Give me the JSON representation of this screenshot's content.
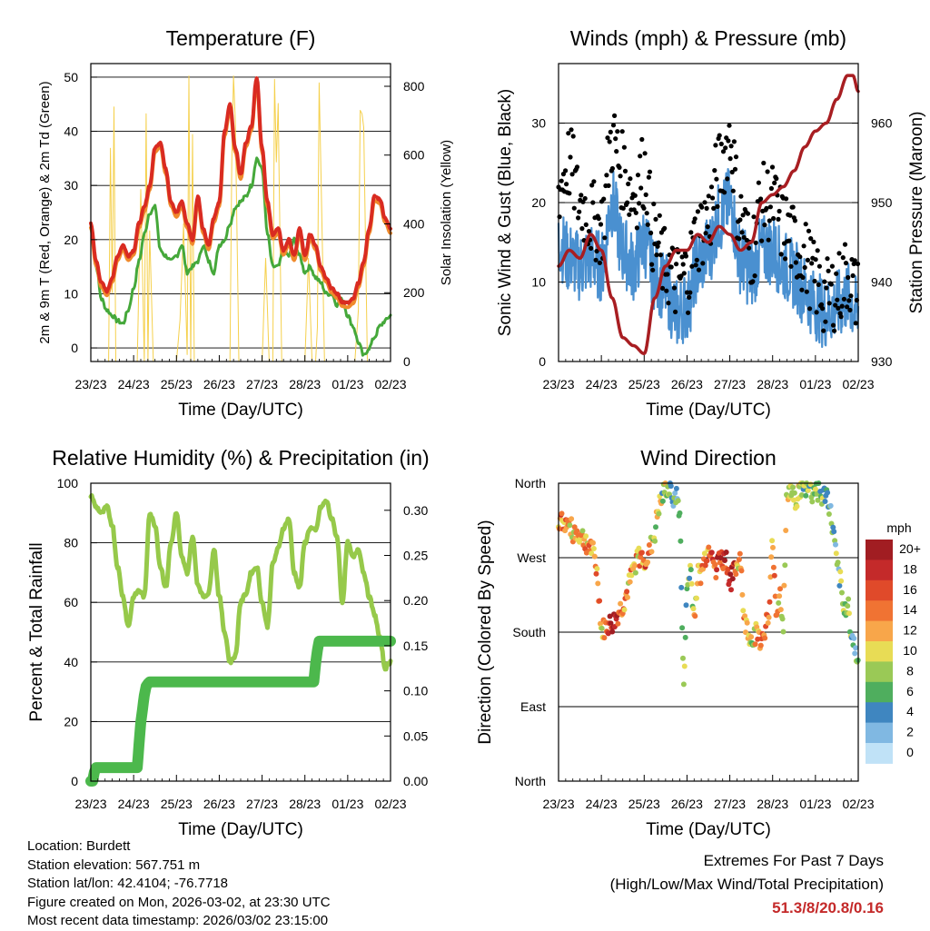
{
  "time_axis": {
    "tick_labels": [
      "23/23",
      "24/23",
      "25/23",
      "26/23",
      "27/23",
      "28/23",
      "01/23",
      "02/23"
    ],
    "xlabel": "Time (Day/UTC)",
    "range_hours": [
      0,
      168
    ]
  },
  "colors": {
    "temp_2m": "#d92b21",
    "temp_9m": "#f08a2c",
    "dewpoint": "#45a83a",
    "solar": "#f5d04c",
    "wind_speed": "#4a90d0",
    "gust": "#000000",
    "pressure": "#a81e22",
    "rh": "#96c94a",
    "precip": "#4cb84c"
  },
  "chart_data": [
    {
      "id": "temperature",
      "type": "line",
      "title": "Temperature (F)",
      "ylabel": "2m & 9m T (Red, Orange) & 2m Td (Green)",
      "y2label": "Solar Insolation (Yellow)",
      "ylim": [
        -2.5,
        52.5
      ],
      "y2lim": [
        0,
        866
      ],
      "yticks": [
        0,
        10,
        20,
        30,
        40,
        50
      ],
      "y2ticks": [
        0,
        200,
        400,
        600,
        800
      ],
      "series": [
        {
          "name": "2m T",
          "x": [
            0,
            3,
            6,
            9,
            12,
            15,
            18,
            21,
            24,
            27,
            30,
            33,
            36,
            39,
            42,
            45,
            48,
            51,
            54,
            57,
            60,
            63,
            66,
            69,
            72,
            75,
            78,
            81,
            84,
            87,
            90,
            93,
            96,
            99,
            102,
            105,
            108,
            111,
            114,
            117,
            120,
            123,
            126,
            129,
            132,
            135,
            138,
            141,
            144,
            147,
            150,
            153,
            156,
            159,
            162,
            165,
            168
          ],
          "values": [
            23,
            16,
            12,
            10.5,
            13,
            17,
            19,
            17,
            18,
            23,
            26,
            30,
            37,
            38,
            33,
            27,
            25,
            27,
            23,
            20,
            28,
            22,
            19,
            24,
            27,
            40,
            45,
            37,
            32,
            38,
            41,
            50,
            37,
            27,
            21,
            22,
            18,
            20,
            17,
            22,
            17,
            21,
            19,
            15,
            13,
            11,
            10,
            8.5,
            8.3,
            9,
            12,
            16,
            22,
            28,
            27.5,
            24,
            22
          ]
        },
        {
          "name": "2m Td",
          "x": [
            0,
            3,
            6,
            9,
            12,
            15,
            18,
            21,
            24,
            27,
            30,
            33,
            36,
            39,
            42,
            45,
            48,
            51,
            54,
            57,
            60,
            63,
            66,
            69,
            72,
            75,
            78,
            81,
            84,
            87,
            90,
            93,
            96,
            99,
            102,
            105,
            108,
            111,
            114,
            117,
            120,
            123,
            126,
            129,
            132,
            135,
            138,
            141,
            144,
            147,
            150,
            153,
            156,
            159,
            162,
            165,
            168
          ],
          "values": [
            22,
            15,
            9,
            7,
            6,
            5,
            4.5,
            7,
            11,
            16,
            21,
            25,
            26,
            18,
            17,
            16,
            17,
            19,
            14,
            15,
            16,
            19,
            16,
            14,
            19,
            20,
            23,
            26,
            27,
            28,
            30,
            35,
            33,
            21,
            15,
            15,
            18,
            17,
            20,
            17,
            14,
            15,
            13,
            12,
            10,
            10,
            8,
            9,
            6,
            4,
            1,
            -1.5,
            0,
            2,
            4,
            5,
            6
          ]
        },
        {
          "name": "Solar",
          "x": [
            0,
            4,
            6,
            8,
            10,
            11,
            12,
            13,
            14,
            16,
            24,
            26,
            28,
            30,
            31,
            32,
            33,
            35,
            48,
            50,
            52,
            54,
            55,
            56,
            57,
            58,
            60,
            72,
            74,
            76,
            78,
            79,
            80,
            81,
            83,
            96,
            98,
            100,
            102,
            103,
            104,
            105,
            107,
            120,
            122,
            124,
            126,
            127,
            128,
            129,
            131,
            144,
            146,
            148,
            150,
            151,
            152,
            153,
            155,
            168
          ],
          "values": [
            0,
            0,
            0,
            0,
            0,
            620,
            200,
            740,
            0,
            0,
            0,
            0,
            500,
            0,
            720,
            0,
            380,
            0,
            0,
            120,
            400,
            20,
            830,
            0,
            660,
            0,
            0,
            0,
            0,
            0,
            0,
            580,
            830,
            700,
            0,
            0,
            300,
            0,
            0,
            820,
            580,
            750,
            0,
            0,
            300,
            0,
            0,
            100,
            810,
            550,
            0,
            0,
            0,
            0,
            150,
            730,
            720,
            680,
            0,
            0
          ]
        }
      ]
    },
    {
      "id": "winds",
      "type": "scatter",
      "title": "Winds (mph) & Pressure (mb)",
      "ylabel": "Sonic Wind & Gust (Blue, Black)",
      "y2label": "Station Pressure (Maroon)",
      "ylim": [
        0,
        37.5
      ],
      "y2lim": [
        930,
        967.5
      ],
      "yticks": [
        0,
        10,
        20,
        30
      ],
      "y2ticks": [
        930,
        940,
        950,
        960
      ],
      "series": [
        {
          "name": "Wind",
          "x": [
            0,
            6,
            12,
            18,
            24,
            30,
            36,
            42,
            48,
            54,
            60,
            66,
            72,
            78,
            84,
            90,
            96,
            102,
            108,
            114,
            120,
            126,
            132,
            138,
            144,
            150,
            156,
            162,
            168
          ],
          "values": [
            15,
            13,
            12,
            13,
            12,
            20,
            14,
            12,
            15,
            11,
            9,
            6,
            7,
            12,
            14,
            18,
            20,
            13,
            11,
            14,
            14,
            12,
            11,
            9,
            7,
            6,
            7,
            8,
            6
          ]
        },
        {
          "name": "Gust",
          "x": [
            0,
            6,
            12,
            18,
            24,
            30,
            36,
            42,
            48,
            54,
            60,
            66,
            72,
            78,
            84,
            90,
            96,
            102,
            108,
            114,
            120,
            126,
            132,
            138,
            144,
            150,
            156,
            162,
            168
          ],
          "values": [
            22,
            25,
            20,
            18,
            17,
            28,
            24,
            21,
            24,
            15,
            12,
            10,
            11,
            16,
            18,
            24,
            28,
            18,
            14,
            20,
            20,
            17,
            15,
            13,
            10,
            8,
            9,
            11,
            8
          ]
        },
        {
          "name": "Pressure",
          "x": [
            0,
            6,
            12,
            18,
            24,
            30,
            36,
            42,
            48,
            54,
            60,
            66,
            72,
            78,
            84,
            90,
            96,
            102,
            108,
            114,
            120,
            126,
            132,
            138,
            144,
            150,
            156,
            162,
            165,
            168
          ],
          "values": [
            942,
            944,
            943,
            946,
            944,
            938,
            933,
            932,
            931,
            938,
            942,
            944,
            944,
            946,
            945,
            947,
            946,
            944,
            945,
            950,
            951,
            952,
            954,
            957,
            959,
            960,
            963,
            966,
            966,
            964
          ]
        }
      ]
    },
    {
      "id": "humidity",
      "type": "line",
      "title": "Relative Humidity (%) & Precipitation (in)",
      "ylabel": "Percent & Total Rainfall",
      "ylim": [
        0,
        100
      ],
      "y2lim": [
        0,
        0.33
      ],
      "yticks": [
        0,
        20,
        40,
        60,
        80,
        100
      ],
      "y2ticks": [
        "0.00",
        "0.05",
        "0.10",
        "0.15",
        "0.20",
        "0.25",
        "0.30"
      ],
      "series": [
        {
          "name": "RH",
          "x": [
            0,
            3,
            6,
            9,
            12,
            15,
            18,
            21,
            24,
            27,
            30,
            33,
            36,
            39,
            42,
            45,
            48,
            51,
            54,
            57,
            60,
            63,
            66,
            69,
            72,
            75,
            78,
            81,
            84,
            87,
            90,
            93,
            96,
            99,
            102,
            105,
            108,
            111,
            114,
            117,
            120,
            123,
            126,
            129,
            132,
            135,
            138,
            141,
            144,
            147,
            150,
            153,
            156,
            159,
            162,
            165,
            168
          ],
          "values": [
            96,
            92,
            90,
            92,
            86,
            72,
            62,
            52,
            62,
            64,
            62,
            90,
            86,
            72,
            65,
            80,
            90,
            75,
            70,
            82,
            66,
            62,
            63,
            78,
            62,
            50,
            40,
            42,
            60,
            63,
            70,
            72,
            60,
            52,
            73,
            78,
            85,
            88,
            70,
            65,
            80,
            85,
            84,
            92,
            94,
            88,
            82,
            60,
            80,
            75,
            78,
            70,
            62,
            56,
            48,
            38,
            40
          ]
        },
        {
          "name": "Precip",
          "x": [
            0,
            1,
            2,
            3,
            26,
            27,
            28,
            29,
            30,
            31,
            32,
            33,
            34,
            35,
            125,
            126,
            127,
            128,
            129,
            168
          ],
          "values": [
            0,
            0,
            0.01,
            0.015,
            0.015,
            0.04,
            0.065,
            0.08,
            0.095,
            0.105,
            0.108,
            0.11,
            0.11,
            0.11,
            0.11,
            0.13,
            0.145,
            0.155,
            0.155,
            0.155
          ]
        }
      ]
    },
    {
      "id": "wind_direction",
      "type": "scatter",
      "title": "Wind Direction",
      "ylabel": "Direction (Colored By Speed)",
      "ylim": [
        0,
        360
      ],
      "ytick_labels": [
        "North",
        "East",
        "South",
        "West",
        "North"
      ],
      "colorbar_title": "mph",
      "colorbar_labels": [
        "20+",
        "18",
        "16",
        "14",
        "12",
        "10",
        "8",
        "6",
        "4",
        "2",
        "0"
      ],
      "colorbar_colors": [
        "#a11d22",
        "#c42a2a",
        "#e04a2a",
        "#f07333",
        "#f8a64a",
        "#e8dc55",
        "#9ac956",
        "#4fae5e",
        "#3f86c0",
        "#80b8e2",
        "#c0e2f7"
      ],
      "series": [
        {
          "name": "Direction",
          "x": [
            0,
            4,
            8,
            12,
            16,
            18,
            20,
            22,
            24,
            26,
            28,
            30,
            32,
            34,
            36,
            38,
            40,
            42,
            44,
            48,
            50,
            52,
            54,
            56,
            58,
            60,
            62,
            64,
            66,
            68,
            70,
            72,
            74,
            76,
            78,
            80,
            82,
            84,
            86,
            88,
            90,
            92,
            94,
            96,
            98,
            100,
            102,
            104,
            106,
            108,
            110,
            112,
            114,
            116,
            118,
            120,
            122,
            124,
            126,
            128,
            130,
            132,
            134,
            136,
            138,
            140,
            142,
            144,
            146,
            148,
            150,
            152,
            154,
            156,
            158,
            160,
            162,
            164,
            166,
            168
          ],
          "values": [
            315,
            312,
            302,
            298,
            288,
            282,
            272,
            245,
            180,
            185,
            188,
            190,
            195,
            205,
            212,
            225,
            240,
            255,
            270,
            270,
            268,
            285,
            300,
            330,
            340,
            355,
            350,
            345,
            345,
            325,
            110,
            230,
            260,
            195,
            250,
            250,
            270,
            280,
            285,
            245,
            275,
            265,
            270,
            240,
            250,
            260,
            275,
            190,
            185,
            170,
            178,
            180,
            165,
            190,
            195,
            300,
            200,
            230,
            190,
            350,
            350,
            340,
            345,
            355,
            350,
            360,
            345,
            355,
            350,
            340,
            350,
            330,
            300,
            260,
            240,
            200,
            220,
            180,
            160,
            140
          ]
        }
      ]
    }
  ],
  "footer": {
    "location": "Location: Burdett",
    "elevation": "Station elevation: 567.751 m",
    "latlon": "Station lat/lon: 42.4104; -76.7718",
    "created": "Figure created on Mon, 2026-03-02, at 23:30 UTC",
    "recent": "Most recent data timestamp: 2026/03/02 23:15:00",
    "extremes_title": "Extremes For Past 7 Days",
    "extremes_sub": "(High/Low/Max Wind/Total Precipitation)",
    "extremes_values": "51.3/8/20.8/0.16"
  }
}
